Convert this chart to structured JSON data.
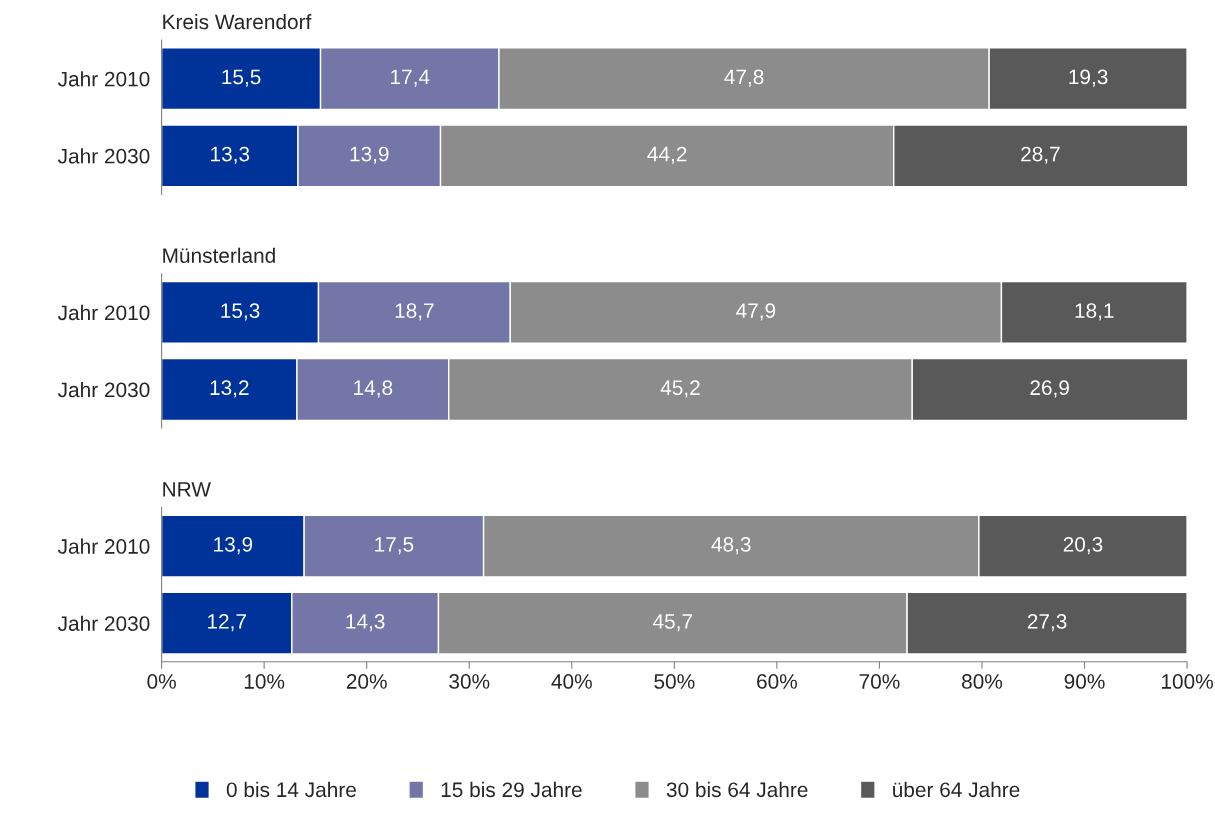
{
  "chart_data": [
    {
      "type": "bar",
      "title": "Kreis Warendorf",
      "orientation": "horizontal",
      "stacked": true,
      "categories": [
        "Jahr 2010",
        "Jahr 2030"
      ],
      "xlim": [
        0,
        100
      ],
      "tick_labels": "y",
      "grid": false,
      "legend": "bottom",
      "series": [
        {
          "name": "0 bis 14 Jahre",
          "color": "#003399",
          "values": [
            15.5,
            13.3
          ],
          "value_labels": [
            "15,5",
            "13,3"
          ]
        },
        {
          "name": "15 bis 29 Jahre",
          "color": "#7376a6",
          "values": [
            17.4,
            13.9
          ],
          "value_labels": [
            "17,4",
            "13,9"
          ]
        },
        {
          "name": "30 bis 64 Jahre",
          "color": "#8c8c8c",
          "values": [
            47.8,
            44.2
          ],
          "value_labels": [
            "47,8",
            "44,2"
          ]
        },
        {
          "name": "über 64 Jahre",
          "color": "#595959",
          "values": [
            19.3,
            28.7
          ],
          "value_labels": [
            "19,3",
            "28,7"
          ]
        }
      ]
    },
    {
      "type": "bar",
      "title": "Münsterland",
      "orientation": "horizontal",
      "stacked": true,
      "categories": [
        "Jahr 2010",
        "Jahr 2030"
      ],
      "xlim": [
        0,
        100
      ],
      "tick_labels": "y",
      "grid": false,
      "series": [
        {
          "color": "#003399",
          "values": [
            15.3,
            13.2
          ],
          "value_labels": [
            "15,3",
            "13,2"
          ]
        },
        {
          "color": "#7376a6",
          "values": [
            18.7,
            14.8
          ],
          "value_labels": [
            "18,7",
            "14,8"
          ]
        },
        {
          "color": "#8c8c8c",
          "values": [
            47.9,
            45.2
          ],
          "value_labels": [
            "47,9",
            "45,2"
          ]
        },
        {
          "color": "#595959",
          "values": [
            18.1,
            26.9
          ],
          "value_labels": [
            "18,1",
            "26,9"
          ]
        }
      ]
    },
    {
      "type": "bar",
      "title": "NRW",
      "orientation": "horizontal",
      "stacked": true,
      "categories": [
        "Jahr 2010",
        "Jahr 2030"
      ],
      "xlim": [
        0,
        100
      ],
      "xticks": [
        {
          "value": 0,
          "label": "0%"
        },
        {
          "value": 10,
          "label": "10%"
        },
        {
          "value": 20,
          "label": "20%"
        },
        {
          "value": 30,
          "label": "30%"
        },
        {
          "value": 40,
          "label": "40%"
        },
        {
          "value": 50,
          "label": "50%"
        },
        {
          "value": 60,
          "label": "60%"
        },
        {
          "value": 70,
          "label": "70%"
        },
        {
          "value": 80,
          "label": "80%"
        },
        {
          "value": 90,
          "label": "90%"
        },
        {
          "value": 100,
          "label": "100%"
        }
      ],
      "grid": false,
      "series": [
        {
          "color": "#003399",
          "values": [
            13.9,
            12.7
          ],
          "value_labels": [
            "13,9",
            "12,7"
          ]
        },
        {
          "color": "#7376a6",
          "values": [
            17.5,
            14.3
          ],
          "value_labels": [
            "17,5",
            "14,3"
          ]
        },
        {
          "color": "#8c8c8c",
          "values": [
            48.3,
            45.7
          ],
          "value_labels": [
            "48,3",
            "45,7"
          ]
        },
        {
          "color": "#595959",
          "values": [
            20.3,
            27.3
          ],
          "value_labels": [
            "20,3",
            "27,3"
          ]
        }
      ]
    }
  ]
}
